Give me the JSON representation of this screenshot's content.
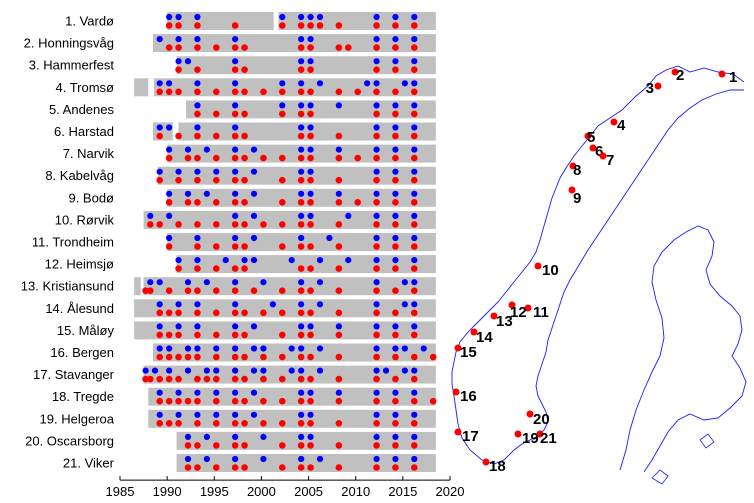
{
  "chart_data": {
    "type": "scatter",
    "title": "",
    "xlabel": "",
    "ylabel": "",
    "xlim": [
      1985,
      2020
    ],
    "x_ticks": [
      1985,
      1990,
      1995,
      2000,
      2005,
      2010,
      2015,
      2020
    ],
    "grid": false,
    "colors": {
      "record_bar": "#c0c0c0",
      "blue_marker": "#0000ff",
      "red_marker": "#ff0000",
      "map_coast": "#1a1aff",
      "map_station": "#ff0000"
    },
    "stations": [
      {
        "label": "1. Vardø",
        "record": [
          1990,
          2018.5
        ],
        "gaps": [
          [
            2001.3,
            2001.8
          ]
        ],
        "blue": [
          1990,
          1991,
          1993,
          2002,
          2004,
          2005,
          2006,
          2012,
          2014,
          2016
        ],
        "red": [
          1990,
          1991,
          1993,
          1997,
          2002,
          2004,
          2005,
          2006,
          2008,
          2012,
          2014,
          2016
        ]
      },
      {
        "label": "2. Honningsvåg",
        "record": [
          1988.5,
          2018.5
        ],
        "gaps": [],
        "blue": [
          1989,
          1991,
          1993,
          1997,
          2004,
          2005,
          2012,
          2014,
          2016
        ],
        "red": [
          1990,
          1991,
          1993,
          1995,
          1997,
          1998,
          2004,
          2005,
          2008,
          2009,
          2012,
          2014,
          2016
        ]
      },
      {
        "label": "3. Hammerfest",
        "record": [
          1991,
          2018.5
        ],
        "gaps": [],
        "blue": [
          1991,
          1992,
          1997,
          2004,
          2005,
          2012,
          2014,
          2016
        ],
        "red": [
          1991,
          1993,
          1997,
          1998,
          2004,
          2005,
          2012,
          2014,
          2016
        ]
      },
      {
        "label": "4. Tromsø",
        "record": [
          1986.5,
          2018.5
        ],
        "gaps": [
          [
            1988,
            1988.6
          ]
        ],
        "blue": [
          1989,
          1990,
          1993,
          1997,
          2002,
          2004,
          2006,
          2011,
          2012,
          2015,
          2016
        ],
        "red": [
          1989,
          1990,
          1991,
          1993,
          1995,
          1997,
          1998,
          2000,
          2002,
          2004,
          2005,
          2008,
          2010,
          2012,
          2014,
          2016
        ]
      },
      {
        "label": "5. Andenes",
        "record": [
          1992,
          2018.5
        ],
        "gaps": [],
        "blue": [
          1993,
          1997,
          2002,
          2004,
          2005,
          2008,
          2012,
          2014,
          2016
        ],
        "red": [
          1993,
          1995,
          1997,
          1998,
          2002,
          2004,
          2005,
          2012,
          2014,
          2016
        ]
      },
      {
        "label": "6. Harstad",
        "record": [
          1988.5,
          2018.5
        ],
        "gaps": [
          [
            1990.6,
            1991.2
          ]
        ],
        "blue": [
          1989,
          1990,
          1993,
          1997,
          2004,
          2005,
          2012,
          2014,
          2016
        ],
        "red": [
          1989,
          1991,
          1993,
          1995,
          1997,
          1998,
          2004,
          2005,
          2008,
          2012,
          2014,
          2016
        ]
      },
      {
        "label": "7. Narvik",
        "record": [
          1990,
          2018.5
        ],
        "gaps": [],
        "blue": [
          1990,
          1992,
          1994,
          1997,
          1999,
          2004,
          2005,
          2008,
          2012,
          2014,
          2016
        ],
        "red": [
          1990,
          1992,
          1993,
          1995,
          1997,
          1998,
          2000,
          2002,
          2004,
          2005,
          2008,
          2010,
          2012,
          2014,
          2016
        ]
      },
      {
        "label": "8. Kabelvåg",
        "record": [
          1989,
          2018.5
        ],
        "gaps": [],
        "blue": [
          1989,
          1991,
          1993,
          1995,
          1997,
          1999,
          2004,
          2005,
          2012,
          2014,
          2016
        ],
        "red": [
          1989,
          1991,
          1993,
          1995,
          1997,
          1998,
          2002,
          2004,
          2005,
          2008,
          2012,
          2014,
          2016
        ]
      },
      {
        "label": "9. Bodø",
        "record": [
          1990,
          2018.5
        ],
        "gaps": [],
        "blue": [
          1990,
          1992,
          1994,
          1997,
          1999,
          2004,
          2005,
          2008,
          2012,
          2014,
          2016
        ],
        "red": [
          1990,
          1992,
          1993,
          1995,
          1997,
          1998,
          2002,
          2004,
          2005,
          2008,
          2010,
          2012,
          2014,
          2016
        ]
      },
      {
        "label": "10. Rørvik",
        "record": [
          1987.5,
          2018.5
        ],
        "gaps": [],
        "blue": [
          1988,
          1990,
          1997,
          1999,
          2004,
          2005,
          2009,
          2012,
          2014,
          2016
        ],
        "red": [
          1988,
          1989,
          1991,
          1993,
          1995,
          1997,
          1998,
          2000,
          2002,
          2004,
          2005,
          2008,
          2012,
          2014,
          2016
        ]
      },
      {
        "label": "11. Trondheim",
        "record": [
          1990,
          2018.5
        ],
        "gaps": [],
        "blue": [
          1990,
          1993,
          1997,
          1999,
          2004,
          2007,
          2012,
          2014,
          2016
        ],
        "red": [
          1990,
          1993,
          1995,
          1997,
          1998,
          2002,
          2004,
          2005,
          2008,
          2012,
          2014,
          2016
        ]
      },
      {
        "label": "12. Heimsjø",
        "record": [
          1991,
          2018.5
        ],
        "gaps": [],
        "blue": [
          1991,
          1993,
          1996,
          1998,
          1999,
          2003,
          2006,
          2009,
          2012,
          2014,
          2016
        ],
        "red": [
          1991,
          1993,
          1995,
          1997,
          1998,
          2004,
          2005,
          2008,
          2012,
          2014,
          2016
        ]
      },
      {
        "label": "13. Kristiansund",
        "record": [
          1986.5,
          2018.5
        ],
        "gaps": [
          [
            1987.2,
            1987.5
          ]
        ],
        "blue": [
          1988,
          1989,
          1992,
          1994,
          1997,
          2000,
          2004,
          2006,
          2012,
          2015,
          2016
        ],
        "red": [
          1987.5,
          1988,
          1990,
          1992,
          1993,
          1995,
          1997,
          1999,
          2002,
          2004,
          2005,
          2008,
          2012,
          2014,
          2016
        ]
      },
      {
        "label": "14. Ålesund",
        "record": [
          1986.5,
          2018.5
        ],
        "gaps": [],
        "blue": [
          1989,
          1991,
          1993,
          1997,
          2001,
          2004,
          2006,
          2012,
          2015,
          2016
        ],
        "red": [
          1989,
          1990,
          1991,
          1993,
          1995,
          1997,
          1998,
          2000,
          2002,
          2004,
          2005,
          2008,
          2012,
          2014,
          2016
        ]
      },
      {
        "label": "15. Måløy",
        "record": [
          1986.5,
          2018.5
        ],
        "gaps": [],
        "blue": [
          1989,
          1991,
          1993,
          1997,
          1999,
          2004,
          2005,
          2008,
          2012,
          2014,
          2016
        ],
        "red": [
          1989,
          1990,
          1991,
          1993,
          1995,
          1997,
          1998,
          2002,
          2004,
          2005,
          2008,
          2012,
          2014,
          2016
        ]
      },
      {
        "label": "16. Bergen",
        "record": [
          1988.5,
          2018.5
        ],
        "gaps": [],
        "blue": [
          1989,
          1990,
          1992,
          1993,
          1995,
          1997,
          1999,
          2000,
          2003,
          2004,
          2006,
          2012,
          2014,
          2015,
          2017
        ],
        "red": [
          1989,
          1990,
          1991,
          1992,
          1993,
          1995,
          1997,
          1998,
          2000,
          2002,
          2004,
          2005,
          2008,
          2012,
          2014,
          2016,
          2018
        ]
      },
      {
        "label": "17. Stavanger",
        "record": [
          1987.5,
          2018.5
        ],
        "gaps": [],
        "blue": [
          1987.5,
          1988.5,
          1990,
          1992,
          1994,
          1995,
          1997,
          1999,
          2000,
          2003,
          2004,
          2006,
          2012,
          2013,
          2015,
          2016
        ],
        "red": [
          1987.5,
          1988,
          1989,
          1990,
          1991,
          1993,
          1994,
          1995,
          1997,
          1998,
          2000,
          2002,
          2004,
          2005,
          2008,
          2012,
          2014,
          2016
        ]
      },
      {
        "label": "18. Tregde",
        "record": [
          1988,
          2018.5
        ],
        "gaps": [],
        "blue": [
          1989,
          1991,
          1993,
          1995,
          1997,
          1999,
          2004,
          2005,
          2008,
          2012,
          2014,
          2016
        ],
        "red": [
          1989,
          1990,
          1991,
          1992,
          1993,
          1995,
          1997,
          1998,
          2000,
          2002,
          2004,
          2005,
          2008,
          2012,
          2014,
          2016,
          2018
        ]
      },
      {
        "label": "19. Helgeroa",
        "record": [
          1988,
          2018.5
        ],
        "gaps": [],
        "blue": [
          1989,
          1991,
          1993,
          1995,
          1997,
          1999,
          2004,
          2005,
          2012,
          2014,
          2016
        ],
        "red": [
          1989,
          1990,
          1991,
          1993,
          1995,
          1997,
          1998,
          2000,
          2002,
          2004,
          2005,
          2008,
          2012,
          2014,
          2016
        ]
      },
      {
        "label": "20. Oscarsborg",
        "record": [
          1991,
          2018.5
        ],
        "gaps": [],
        "blue": [
          1992,
          1994,
          1997,
          2000,
          2004,
          2005,
          2012,
          2014,
          2016
        ],
        "red": [
          1992,
          1993,
          1995,
          1997,
          1998,
          2002,
          2004,
          2005,
          2008,
          2012,
          2014,
          2016
        ]
      },
      {
        "label": "21. Viker",
        "record": [
          1991,
          2018.5
        ],
        "gaps": [],
        "blue": [
          1992,
          1994,
          1997,
          2000,
          2004,
          2006,
          2012,
          2014,
          2016
        ],
        "red": [
          1992,
          1993,
          1995,
          1997,
          1998,
          2002,
          2004,
          2005,
          2008,
          2012,
          2014,
          2016
        ]
      }
    ],
    "map_labels": [
      "1",
      "2",
      "3",
      "4",
      "5",
      "6",
      "7",
      "8",
      "9",
      "10",
      "11",
      "12",
      "13",
      "14",
      "15",
      "16",
      "17",
      "18",
      "19",
      "20",
      "21"
    ]
  }
}
